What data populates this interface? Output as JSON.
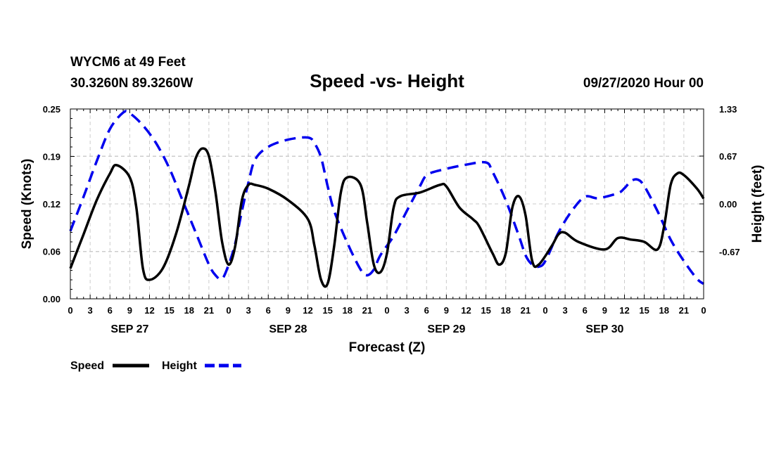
{
  "header": {
    "station": "WYCM6 at 49 Feet",
    "coords": "30.3260N 89.3260W",
    "datetime": "09/27/2020 Hour 00"
  },
  "chart_data": {
    "type": "line",
    "title": "Speed -vs- Height",
    "xlabel": "Forecast (Z)",
    "ylabel_left": "Speed (Knots)",
    "ylabel_right": "Height (feet)",
    "x_unit": "hours from 09/27/2020 00Z",
    "xlim": [
      0,
      96
    ],
    "ylim_left": [
      0,
      0.25
    ],
    "ylim_right": [
      -1.33,
      1.33
    ],
    "x_tick_labels": [
      "0",
      "3",
      "6",
      "9",
      "12",
      "15",
      "18",
      "21",
      "0",
      "3",
      "6",
      "9",
      "12",
      "15",
      "18",
      "21",
      "0",
      "3",
      "6",
      "9",
      "12",
      "15",
      "18",
      "21",
      "0",
      "3",
      "6",
      "9",
      "12",
      "15",
      "18",
      "21",
      "0"
    ],
    "day_labels": [
      {
        "label": "SEP 27",
        "hour": 9
      },
      {
        "label": "SEP 28",
        "hour": 33
      },
      {
        "label": "SEP 29",
        "hour": 57
      },
      {
        "label": "SEP 30",
        "hour": 81
      }
    ],
    "y_left_ticks": [
      {
        "value": 0,
        "label": "0.00"
      },
      {
        "value": 0.0625,
        "label": "0.06"
      },
      {
        "value": 0.125,
        "label": "0.12"
      },
      {
        "value": 0.1875,
        "label": "0.19"
      },
      {
        "value": 0.25,
        "label": "0.25"
      }
    ],
    "y_right_ticks": [
      {
        "value": -0.67,
        "label": "-0.67"
      },
      {
        "value": 0.0,
        "label": "0.00"
      },
      {
        "value": 0.67,
        "label": "0.67"
      },
      {
        "value": 1.33,
        "label": "1.33"
      }
    ],
    "grid": true,
    "series": [
      {
        "name": "Speed",
        "axis": "left",
        "color": "#000000",
        "dash": "solid",
        "points": [
          [
            0,
            0.04
          ],
          [
            2,
            0.085
          ],
          [
            4,
            0.13
          ],
          [
            6,
            0.165
          ],
          [
            7,
            0.176
          ],
          [
            9,
            0.16
          ],
          [
            10,
            0.12
          ],
          [
            11,
            0.04
          ],
          [
            12,
            0.025
          ],
          [
            14,
            0.04
          ],
          [
            16,
            0.085
          ],
          [
            18,
            0.15
          ],
          [
            19,
            0.185
          ],
          [
            20,
            0.198
          ],
          [
            21,
            0.188
          ],
          [
            22,
            0.14
          ],
          [
            23,
            0.075
          ],
          [
            24,
            0.045
          ],
          [
            25,
            0.07
          ],
          [
            26,
            0.13
          ],
          [
            27,
            0.15
          ],
          [
            28,
            0.15
          ],
          [
            30,
            0.145
          ],
          [
            33,
            0.13
          ],
          [
            36,
            0.105
          ],
          [
            37,
            0.07
          ],
          [
            38,
            0.025
          ],
          [
            39,
            0.02
          ],
          [
            40,
            0.07
          ],
          [
            41,
            0.14
          ],
          [
            42,
            0.16
          ],
          [
            44,
            0.15
          ],
          [
            45,
            0.1
          ],
          [
            46,
            0.045
          ],
          [
            47,
            0.035
          ],
          [
            48,
            0.06
          ],
          [
            49,
            0.12
          ],
          [
            50,
            0.135
          ],
          [
            53,
            0.14
          ],
          [
            56,
            0.15
          ],
          [
            57,
            0.148
          ],
          [
            59,
            0.12
          ],
          [
            61,
            0.105
          ],
          [
            62,
            0.095
          ],
          [
            64,
            0.06
          ],
          [
            65,
            0.045
          ],
          [
            66,
            0.06
          ],
          [
            67,
            0.12
          ],
          [
            68,
            0.135
          ],
          [
            69,
            0.11
          ],
          [
            70,
            0.05
          ],
          [
            71,
            0.045
          ],
          [
            73,
            0.07
          ],
          [
            74,
            0.085
          ],
          [
            75,
            0.087
          ],
          [
            77,
            0.075
          ],
          [
            81,
            0.065
          ],
          [
            83,
            0.08
          ],
          [
            85,
            0.078
          ],
          [
            87,
            0.075
          ],
          [
            89,
            0.065
          ],
          [
            90,
            0.095
          ],
          [
            91,
            0.15
          ],
          [
            92,
            0.165
          ],
          [
            93,
            0.163
          ],
          [
            95,
            0.145
          ],
          [
            96,
            0.132
          ]
        ]
      },
      {
        "name": "Height",
        "axis": "right",
        "color": "#0000ee",
        "dash": "dashed",
        "points": [
          [
            0,
            -0.38
          ],
          [
            2,
            0.1
          ],
          [
            4,
            0.6
          ],
          [
            6,
            1.05
          ],
          [
            8,
            1.28
          ],
          [
            9,
            1.27
          ],
          [
            11,
            1.1
          ],
          [
            13,
            0.85
          ],
          [
            15,
            0.5
          ],
          [
            17,
            0.05
          ],
          [
            19,
            -0.4
          ],
          [
            21,
            -0.85
          ],
          [
            22,
            -1.0
          ],
          [
            23,
            -1.05
          ],
          [
            24,
            -0.85
          ],
          [
            25,
            -0.55
          ],
          [
            26,
            -0.1
          ],
          [
            27,
            0.3
          ],
          [
            28,
            0.62
          ],
          [
            30,
            0.8
          ],
          [
            33,
            0.9
          ],
          [
            36,
            0.93
          ],
          [
            37,
            0.85
          ],
          [
            38,
            0.65
          ],
          [
            39,
            0.25
          ],
          [
            40,
            -0.1
          ],
          [
            42,
            -0.55
          ],
          [
            44,
            -0.92
          ],
          [
            45,
            -1.0
          ],
          [
            46,
            -0.92
          ],
          [
            47,
            -0.72
          ],
          [
            49,
            -0.45
          ],
          [
            51,
            -0.1
          ],
          [
            53,
            0.25
          ],
          [
            54,
            0.4
          ],
          [
            56,
            0.47
          ],
          [
            60,
            0.55
          ],
          [
            63,
            0.58
          ],
          [
            64,
            0.45
          ],
          [
            66,
            0.05
          ],
          [
            68,
            -0.45
          ],
          [
            69,
            -0.72
          ],
          [
            70,
            -0.85
          ],
          [
            71,
            -0.88
          ],
          [
            72,
            -0.8
          ],
          [
            74,
            -0.4
          ],
          [
            76,
            -0.1
          ],
          [
            78,
            0.1
          ],
          [
            80,
            0.08
          ],
          [
            83,
            0.15
          ],
          [
            84,
            0.22
          ],
          [
            85,
            0.32
          ],
          [
            86,
            0.34
          ],
          [
            87,
            0.25
          ],
          [
            89,
            -0.1
          ],
          [
            91,
            -0.5
          ],
          [
            93,
            -0.8
          ],
          [
            95,
            -1.05
          ],
          [
            96,
            -1.12
          ]
        ]
      }
    ],
    "legend": {
      "placement": "bottom-left",
      "entries": [
        {
          "label": "Speed",
          "color": "#000000",
          "dash": "solid"
        },
        {
          "label": "Height",
          "color": "#0000ee",
          "dash": "dashed"
        }
      ]
    }
  }
}
